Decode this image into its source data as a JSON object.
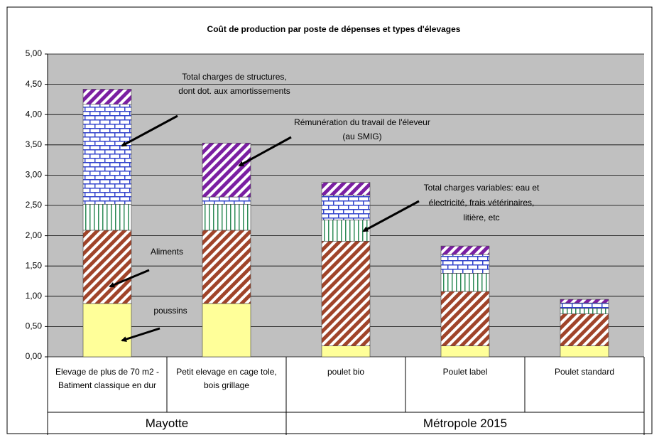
{
  "chart_data": {
    "type": "stacked_bar",
    "title": "Coût de production par poste de dépenses et types d'élevages",
    "categories": [
      "Elevage de plus de 70 m2 - Batiment classique en dur",
      "Petit elevage en cage tole, bois grillage",
      "poulet bio",
      "Poulet label",
      "Poulet standard"
    ],
    "groups": [
      {
        "label": "Mayotte",
        "span": 2
      },
      {
        "label": "Métropole 2015",
        "span": 3
      }
    ],
    "series": [
      {
        "color": "#ffff99",
        "pattern": "solid",
        "values": [
          0.88,
          0.88,
          0.18,
          0.18,
          0.18
        ]
      },
      {
        "color": "#a0442a",
        "pattern": "diagonal",
        "values": [
          1.21,
          1.21,
          1.73,
          0.9,
          0.53
        ]
      },
      {
        "color": "#2e8b57",
        "pattern": "vertical",
        "values": [
          0.43,
          0.43,
          0.35,
          0.3,
          0.09
        ]
      },
      {
        "color": "#3344cc",
        "pattern": "brick",
        "values": [
          1.65,
          0.12,
          0.41,
          0.31,
          0.09
        ]
      },
      {
        "color": "#7b1fa2",
        "pattern": "diagonal",
        "values": [
          0.25,
          0.89,
          0.21,
          0.14,
          0.06
        ]
      }
    ],
    "annotations": [
      "Total charges de structures, dont dot. aux amortissements",
      "Rémunération du travail de l'éleveur (au SMIG)",
      "Total charges variables: eau et électricité, frais vétérinaires, litière, etc",
      "Aliments",
      "poussins"
    ],
    "ylim": [
      0,
      5
    ],
    "yticks": [
      {
        "value": 0,
        "label": "0,00"
      },
      {
        "value": 0.5,
        "label": "0,50"
      },
      {
        "value": 1,
        "label": "1,00"
      },
      {
        "value": 1.5,
        "label": "1,50"
      },
      {
        "value": 2,
        "label": "2,00"
      },
      {
        "value": 2.5,
        "label": "2,50"
      },
      {
        "value": 3,
        "label": "3,00"
      },
      {
        "value": 3.5,
        "label": "3,50"
      },
      {
        "value": 4,
        "label": "4,00"
      },
      {
        "value": 4.5,
        "label": "4,50"
      },
      {
        "value": 5,
        "label": "5,00"
      }
    ],
    "grid": true,
    "plot_background": "#c0c0c0"
  }
}
